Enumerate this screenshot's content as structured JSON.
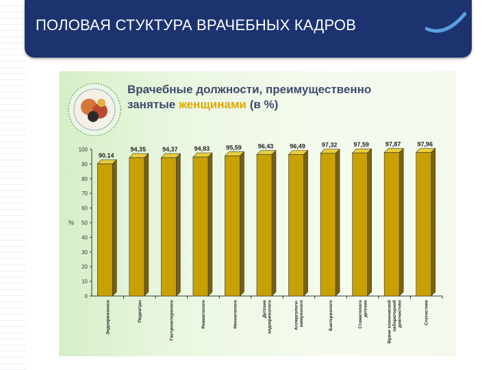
{
  "header": {
    "title": "ПОЛОВАЯ СТУКТУРА ВРАЧЕБНЫХ КАДРОВ"
  },
  "colors": {
    "header_bg": "#1c3370",
    "bar": "#c8a000",
    "bar_dark": "#7a6200",
    "accent": "#e0a800"
  },
  "chart_data": {
    "type": "bar",
    "title_part1": "Врачебные должности, преимущественно",
    "title_part2_prefix": "занятые ",
    "title_part2_highlight": "женщинами",
    "title_part2_suffix": " (в %)",
    "ylabel": "%",
    "ylim": [
      0,
      100
    ],
    "yticks": [
      "0",
      "10",
      "20",
      "30",
      "40",
      "50",
      "60",
      "70",
      "80",
      "90",
      "100"
    ],
    "categories": [
      [
        "Эндокринологи"
      ],
      [
        "Педиатры"
      ],
      [
        "Гастроэнтерологи"
      ],
      [
        "Ревматологи"
      ],
      [
        "Неонатологи"
      ],
      [
        "Детские",
        "эндокринологи"
      ],
      [
        "Аллергологи-",
        "иммунологи"
      ],
      [
        "Бактериологи"
      ],
      [
        "Стоматологи",
        "детские"
      ],
      [
        "Врачи клинической",
        "лабораторной",
        "диагностики"
      ],
      [
        "Статистики"
      ]
    ],
    "values": [
      90.14,
      94.35,
      94.37,
      94.83,
      95.59,
      96.43,
      96.49,
      97.32,
      97.59,
      97.87,
      97.96
    ],
    "value_labels": [
      "90.14",
      "94,35",
      "94,37",
      "94,83",
      "95,59",
      "96,43",
      "96,49",
      "97,32",
      "97,59",
      "97,87",
      "97,96"
    ],
    "grid": false
  }
}
